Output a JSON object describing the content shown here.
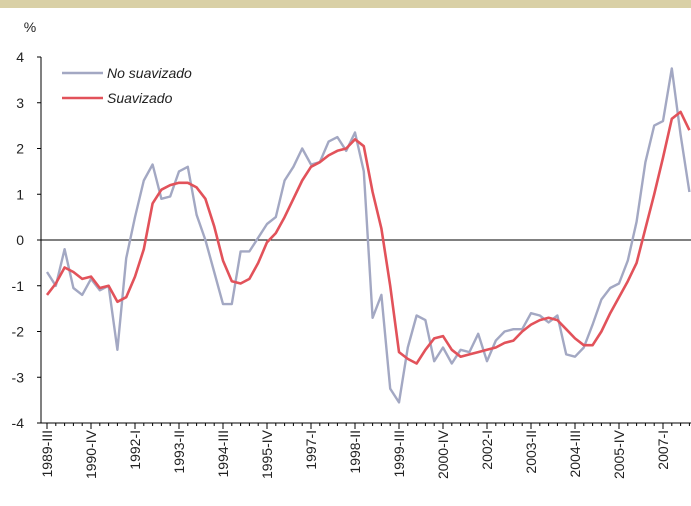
{
  "chart_data": {
    "type": "line",
    "y_label": "%",
    "categories": [
      "1989-III",
      null,
      null,
      null,
      null,
      "1990-IV",
      null,
      null,
      null,
      null,
      "1992-I",
      null,
      null,
      null,
      null,
      "1993-II",
      null,
      null,
      null,
      null,
      "1994-III",
      null,
      null,
      null,
      null,
      "1995-IV",
      null,
      null,
      null,
      null,
      "1997-I",
      null,
      null,
      null,
      null,
      "1998-II",
      null,
      null,
      null,
      null,
      "1999-III",
      null,
      null,
      null,
      null,
      "2000-IV",
      null,
      null,
      null,
      null,
      "2002-I",
      null,
      null,
      null,
      null,
      "2003-II",
      null,
      null,
      null,
      null,
      "2004-III",
      null,
      null,
      null,
      null,
      "2005-IV",
      null,
      null,
      null,
      null,
      "2007-I",
      null,
      null,
      null
    ],
    "series": [
      {
        "name": "No suavizado",
        "color": "#a3a8c3",
        "values": [
          -0.7,
          -1.0,
          -0.2,
          -1.05,
          -1.2,
          -0.85,
          -1.1,
          -1.0,
          -2.4,
          -0.4,
          0.5,
          1.3,
          1.65,
          0.9,
          0.95,
          1.5,
          1.6,
          0.55,
          0.0,
          -0.7,
          -1.4,
          -1.4,
          -0.25,
          -0.25,
          0.05,
          0.35,
          0.5,
          1.3,
          1.6,
          2.0,
          1.65,
          1.7,
          2.15,
          2.25,
          1.95,
          2.35,
          1.5,
          -1.7,
          -1.2,
          -3.25,
          -3.55,
          -2.35,
          -1.65,
          -1.75,
          -2.65,
          -2.35,
          -2.7,
          -2.4,
          -2.45,
          -2.05,
          -2.65,
          -2.2,
          -2.0,
          -1.95,
          -1.95,
          -1.6,
          -1.65,
          -1.8,
          -1.65,
          -2.5,
          -2.55,
          -2.35,
          -1.85,
          -1.3,
          -1.05,
          -0.95,
          -0.45,
          0.4,
          1.7,
          2.5,
          2.6,
          3.75,
          2.3,
          1.05
        ]
      },
      {
        "name": "Suavizado",
        "color": "#e2525a",
        "values": [
          -1.2,
          -0.95,
          -0.6,
          -0.7,
          -0.85,
          -0.8,
          -1.05,
          -1.0,
          -1.35,
          -1.25,
          -0.8,
          -0.2,
          0.8,
          1.1,
          1.2,
          1.25,
          1.25,
          1.15,
          0.9,
          0.3,
          -0.45,
          -0.9,
          -0.95,
          -0.85,
          -0.5,
          -0.05,
          0.15,
          0.5,
          0.9,
          1.3,
          1.6,
          1.7,
          1.85,
          1.95,
          2.0,
          2.2,
          2.05,
          1.05,
          0.25,
          -1.0,
          -2.45,
          -2.6,
          -2.7,
          -2.4,
          -2.15,
          -2.1,
          -2.4,
          -2.55,
          -2.5,
          -2.45,
          -2.4,
          -2.35,
          -2.25,
          -2.2,
          -2.0,
          -1.85,
          -1.75,
          -1.7,
          -1.75,
          -1.95,
          -2.15,
          -2.3,
          -2.3,
          -2.0,
          -1.6,
          -1.25,
          -0.9,
          -0.5,
          0.25,
          1.0,
          1.8,
          2.65,
          2.8,
          2.4
        ]
      }
    ],
    "ylim": [
      -4,
      4
    ],
    "yticks": [
      -4,
      -3,
      -2,
      -1,
      0,
      1,
      2,
      3,
      4
    ],
    "grid": false,
    "legend": "upper left"
  }
}
